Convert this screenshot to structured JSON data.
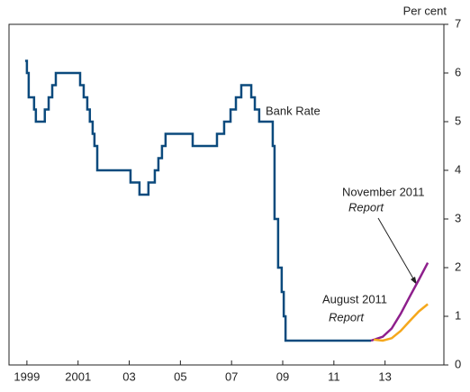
{
  "chart_data": {
    "type": "line",
    "y_axis_label": "Per cent",
    "x": [
      1998.93,
      1999.0,
      1999.07,
      1999.28,
      1999.35,
      1999.7,
      1999.85,
      1999.99,
      2000.13,
      2001.08,
      2001.22,
      2001.36,
      2001.46,
      2001.57,
      2001.64,
      2001.75,
      2003.05,
      2003.4,
      2003.75,
      2004.0,
      2004.14,
      2004.28,
      2004.42,
      2005.48,
      2006.43,
      2006.71,
      2006.96,
      2007.17,
      2007.38,
      2007.77,
      2007.91,
      2008.08,
      2008.61,
      2008.68,
      2008.82,
      2008.96,
      2009.04,
      2009.11,
      2012.45
    ],
    "series": [
      {
        "name": "Bank Rate",
        "color": "#0b4a7d",
        "step": true,
        "values": [
          6.25,
          6.0,
          5.5,
          5.25,
          5.0,
          5.25,
          5.5,
          5.75,
          6.0,
          5.75,
          5.5,
          5.25,
          5.0,
          4.75,
          4.5,
          4.0,
          3.75,
          3.5,
          3.75,
          4.0,
          4.25,
          4.5,
          4.75,
          4.5,
          4.75,
          5.0,
          5.25,
          5.5,
          5.75,
          5.5,
          5.25,
          5.0,
          4.5,
          3.0,
          2.0,
          1.5,
          1.0,
          0.5,
          0.5
        ]
      },
      {
        "name": "November 2011 Report",
        "color": "#8e1f8c",
        "x": [
          2012.45,
          2012.91,
          2013.26,
          2013.61,
          2013.96,
          2014.32,
          2014.67
        ],
        "values": [
          0.5,
          0.58,
          0.75,
          1.05,
          1.4,
          1.75,
          2.1
        ]
      },
      {
        "name": "August 2011 Report",
        "color": "#f5a81c",
        "x": [
          2012.56,
          2012.91,
          2013.26,
          2013.61,
          2013.96,
          2014.32,
          2014.67
        ],
        "values": [
          0.52,
          0.5,
          0.55,
          0.7,
          0.9,
          1.1,
          1.25
        ]
      }
    ],
    "annotations": [
      "Bank Rate",
      "November 2011",
      "Report",
      "August  2011",
      "Report"
    ],
    "xlim": [
      1998.3,
      2015.3
    ],
    "xticks": [
      1999,
      2001,
      {
        "value": 2003,
        "label": "03"
      },
      {
        "value": 2005,
        "label": "05"
      },
      {
        "value": 2007,
        "label": "07"
      },
      {
        "value": 2009,
        "label": "09"
      },
      {
        "value": 2011,
        "label": "11"
      },
      {
        "value": 2013,
        "label": "13"
      }
    ],
    "ylim": [
      0,
      7
    ],
    "yticks": [
      0,
      1,
      2,
      3,
      4,
      5,
      6,
      7
    ]
  }
}
